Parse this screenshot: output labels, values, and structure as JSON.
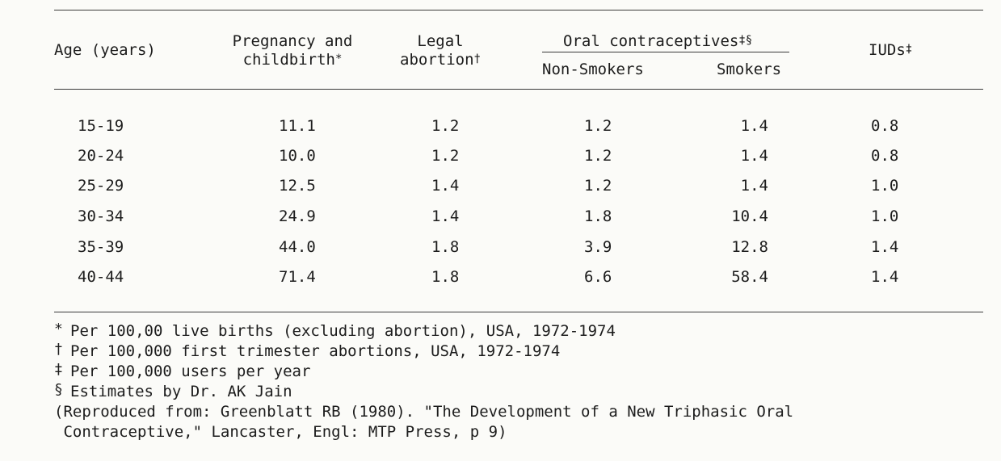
{
  "header": {
    "age": "Age (years)",
    "pregnancy_line1": "Pregnancy and",
    "pregnancy_line2": "childbirth",
    "pregnancy_mark": "*",
    "legal_line1": "Legal",
    "legal_line2": "abortion",
    "legal_mark": "†",
    "oral": "Oral contraceptives",
    "oral_mark": "‡§",
    "nonsmokers": "Non-Smokers",
    "smokers": "Smokers",
    "iuds": "IUDs",
    "iuds_mark": "‡"
  },
  "rows": [
    {
      "age": "15-19",
      "pregnancy": "11.1",
      "legal": "1.2",
      "nonsmokers": "1.2",
      "smokers": "1.4",
      "iuds": "0.8"
    },
    {
      "age": "20-24",
      "pregnancy": "10.0",
      "legal": "1.2",
      "nonsmokers": "1.2",
      "smokers": "1.4",
      "iuds": "0.8"
    },
    {
      "age": "25-29",
      "pregnancy": "12.5",
      "legal": "1.4",
      "nonsmokers": "1.2",
      "smokers": "1.4",
      "iuds": "1.0"
    },
    {
      "age": "30-34",
      "pregnancy": "24.9",
      "legal": "1.4",
      "nonsmokers": "1.8",
      "smokers": "10.4",
      "iuds": "1.0"
    },
    {
      "age": "35-39",
      "pregnancy": "44.0",
      "legal": "1.8",
      "nonsmokers": "3.9",
      "smokers": "12.8",
      "iuds": "1.4"
    },
    {
      "age": "40-44",
      "pregnancy": "71.4",
      "legal": "1.8",
      "nonsmokers": "6.6",
      "smokers": "58.4",
      "iuds": "1.4"
    }
  ],
  "footnotes": [
    {
      "mark": "*",
      "text": "Per 100,00 live births (excluding abortion), USA, 1972-1974"
    },
    {
      "mark": "†",
      "text": "Per 100,000 first trimester abortions, USA, 1972-1974"
    },
    {
      "mark": "‡",
      "text": "Per 100,000 users per year"
    },
    {
      "mark": "§",
      "text": "Estimates by Dr. AK Jain"
    }
  ],
  "source_line1": "(Reproduced from: Greenblatt RB (1980). \"The Development of a New Triphasic Oral",
  "source_line2": " Contraceptive,\" Lancaster, Engl: MTP Press, p 9)"
}
